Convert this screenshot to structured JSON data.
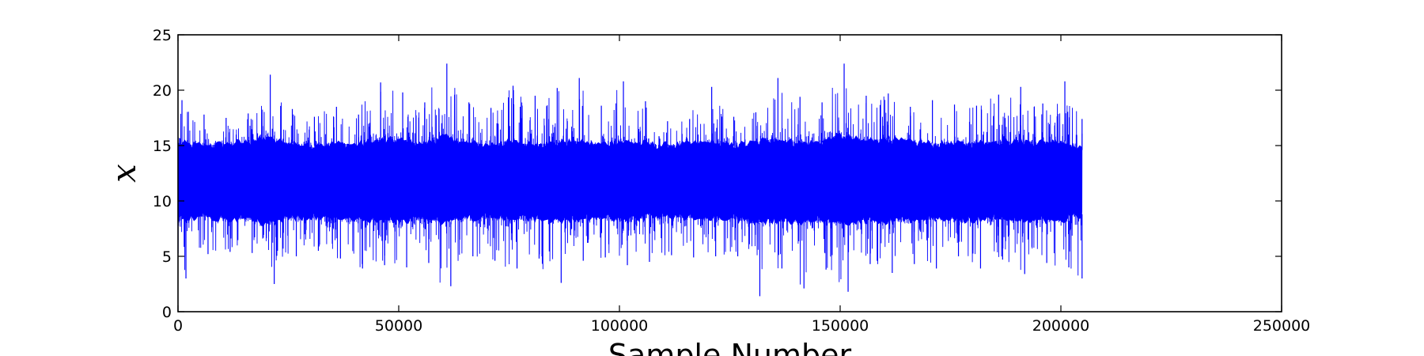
{
  "chart_data": {
    "type": "line",
    "title": "",
    "xlabel": "Sample Number",
    "ylabel": "x",
    "xlim": [
      0,
      250000
    ],
    "ylim": [
      0,
      25
    ],
    "xticks": [
      0,
      50000,
      100000,
      150000,
      200000,
      250000
    ],
    "yticks": [
      0,
      5,
      10,
      15,
      20,
      25
    ],
    "xtick_labels": [
      "0",
      "50000",
      "100000",
      "150000",
      "200000",
      "250000"
    ],
    "ytick_labels": [
      "0",
      "5",
      "10",
      "15",
      "20",
      "25"
    ],
    "grid": false,
    "legend": "none",
    "series": [
      {
        "color": "#0000ff",
        "sample_count": 204800,
        "envelope": {
          "x": [
            0,
            5000,
            10000,
            15000,
            20000,
            25000,
            30000,
            35000,
            40000,
            45000,
            50000,
            55000,
            60000,
            65000,
            70000,
            75000,
            80000,
            85000,
            90000,
            95000,
            100000,
            105000,
            110000,
            115000,
            120000,
            125000,
            130000,
            135000,
            140000,
            145000,
            150000,
            155000,
            160000,
            165000,
            170000,
            175000,
            180000,
            185000,
            190000,
            195000,
            200000,
            204800
          ],
          "upper": [
            19.1,
            17.8,
            17.5,
            17.9,
            21.4,
            18.3,
            17.6,
            18.5,
            17.8,
            20.7,
            19.8,
            18.9,
            22.4,
            18.9,
            18.4,
            20.4,
            19.5,
            20.2,
            21.1,
            18.6,
            20.8,
            19.0,
            17.2,
            17.4,
            20.3,
            17.6,
            18.0,
            21.1,
            19.4,
            18.9,
            22.4,
            19.5,
            19.7,
            18.5,
            19.1,
            18.7,
            18.6,
            19.6,
            20.3,
            18.8,
            20.8,
            17.4
          ],
          "lower": [
            3.0,
            5.2,
            5.4,
            5.3,
            2.5,
            5.0,
            5.5,
            4.8,
            3.9,
            4.2,
            4.0,
            4.4,
            2.3,
            5.0,
            4.6,
            3.9,
            4.8,
            2.6,
            4.6,
            4.9,
            4.2,
            4.5,
            5.1,
            4.9,
            5.0,
            5.0,
            1.4,
            3.9,
            2.1,
            3.8,
            1.8,
            4.3,
            3.5,
            4.3,
            3.9,
            5.0,
            3.9,
            4.7,
            3.4,
            4.4,
            4.0,
            3.0
          ],
          "core_upper": [
            15.2,
            15.0,
            15.1,
            15.3,
            15.6,
            15.2,
            15.0,
            15.2,
            15.1,
            15.4,
            15.5,
            15.1,
            15.8,
            15.2,
            15.1,
            15.3,
            15.1,
            15.2,
            15.4,
            15.1,
            15.4,
            15.2,
            15.0,
            15.1,
            15.3,
            15.0,
            15.2,
            15.6,
            15.2,
            15.3,
            15.9,
            15.4,
            15.6,
            15.3,
            15.2,
            15.1,
            15.2,
            15.3,
            15.4,
            15.3,
            15.4,
            14.6
          ],
          "core_lower": [
            8.3,
            8.6,
            8.5,
            8.4,
            8.0,
            8.5,
            8.6,
            8.5,
            8.4,
            8.3,
            8.3,
            8.4,
            8.1,
            8.5,
            8.5,
            8.4,
            8.4,
            8.3,
            8.3,
            8.5,
            8.3,
            8.4,
            8.6,
            8.5,
            8.4,
            8.5,
            8.0,
            8.2,
            8.1,
            8.3,
            8.0,
            8.3,
            8.2,
            8.3,
            8.3,
            8.4,
            8.3,
            8.4,
            8.2,
            8.3,
            8.2,
            8.8
          ]
        }
      }
    ]
  }
}
